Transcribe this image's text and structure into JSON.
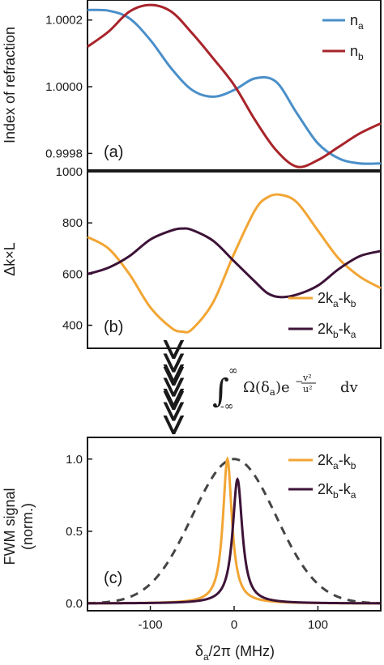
{
  "colors": {
    "n_a": "#4a8fc9",
    "n_b": "#a8242a",
    "k1": "#f2a533",
    "k2": "#3d1338",
    "envelope": "#444444"
  },
  "chart_data": [
    {
      "type": "line",
      "panel_label": "(a)",
      "ylabel": "Index of refraction",
      "xlim": [
        -175,
        175
      ],
      "ylim": [
        0.99975,
        1.00026
      ],
      "yticks": [
        "1.0002",
        "1.0000",
        "0.9998"
      ],
      "ytick_values": [
        1.0002,
        1.0,
        0.9998
      ],
      "legend_position": "top-right",
      "series": [
        {
          "name": "n_a",
          "label_main": "n",
          "label_sub": "a",
          "x": [
            -175,
            -150,
            -125,
            -100,
            -75,
            -50,
            -25,
            0,
            25,
            50,
            75,
            100,
            125,
            150,
            175
          ],
          "y": [
            1.00023,
            1.000228,
            1.000205,
            1.00014,
            1.000055,
            0.99999,
            0.99997,
            0.99999,
            1.000025,
            1.000015,
            0.99992,
            0.99983,
            0.999785,
            0.99977,
            0.99977
          ]
        },
        {
          "name": "n_b",
          "label_main": "n",
          "label_sub": "b",
          "x": [
            -175,
            -150,
            -125,
            -100,
            -75,
            -50,
            -25,
            0,
            25,
            50,
            75,
            100,
            125,
            150,
            175
          ],
          "y": [
            1.00012,
            1.000165,
            1.000225,
            1.000245,
            1.000225,
            1.00016,
            1.000085,
            1.000005,
            0.9999,
            0.99981,
            0.99976,
            0.99978,
            0.99982,
            0.99986,
            0.99989
          ]
        }
      ]
    },
    {
      "type": "line",
      "panel_label": "(b)",
      "ylabel": "Δk×L",
      "xlim": [
        -175,
        175
      ],
      "ylim": [
        310,
        1000
      ],
      "yticks": [
        "1000",
        "800",
        "600",
        "400"
      ],
      "ytick_values": [
        1000,
        800,
        600,
        400
      ],
      "legend_position": "bottom-right",
      "series": [
        {
          "name": "2k_a-k_b",
          "label_parts": [
            "2",
            "k",
            "a",
            "-",
            "k",
            "b"
          ],
          "x": [
            -175,
            -150,
            -125,
            -100,
            -75,
            -62,
            -50,
            -25,
            0,
            25,
            40,
            55,
            75,
            100,
            125,
            150,
            175
          ],
          "y": [
            745,
            700,
            600,
            470,
            390,
            375,
            385,
            490,
            680,
            850,
            900,
            910,
            880,
            770,
            660,
            590,
            545
          ]
        },
        {
          "name": "2k_b-k_a",
          "label_parts": [
            "2",
            "k",
            "b",
            "-",
            "k",
            "a"
          ],
          "x": [
            -175,
            -150,
            -125,
            -100,
            -75,
            -62,
            -50,
            -25,
            0,
            25,
            40,
            55,
            75,
            100,
            125,
            150,
            175
          ],
          "y": [
            600,
            625,
            670,
            735,
            770,
            778,
            772,
            730,
            650,
            570,
            525,
            510,
            520,
            555,
            620,
            670,
            690
          ]
        }
      ]
    },
    {
      "type": "line",
      "panel_label": "(c)",
      "ylabel_line1": "FWM signal",
      "ylabel_line2": "(norm.)",
      "xlabel_main": "δ",
      "xlabel_sub": "a",
      "xlabel_rest": "/2π (MHz)",
      "xlim": [
        -175,
        175
      ],
      "ylim": [
        -0.05,
        1.15
      ],
      "yticks": [
        "1.0",
        "0.5",
        "0.0"
      ],
      "ytick_values": [
        1.0,
        0.5,
        0.0
      ],
      "xticks": [
        "-100",
        "0",
        "100"
      ],
      "xtick_values": [
        -100,
        0,
        100
      ],
      "legend_position": "top-right",
      "series": [
        {
          "name": "2k_a-k_b",
          "label_parts": [
            "2",
            "k",
            "a",
            "-",
            "k",
            "b"
          ],
          "peak_center": -8,
          "peak_height": 1.0,
          "peak_width": 6.5
        },
        {
          "name": "2k_b-k_a",
          "label_parts": [
            "2",
            "k",
            "b",
            "-",
            "k",
            "a"
          ],
          "peak_center": 4,
          "peak_height": 0.86,
          "peak_width": 7
        },
        {
          "name": "doppler-envelope",
          "style": "dashed",
          "peak_center": 0,
          "peak_height": 1.0,
          "gauss_sigma": 50
        }
      ]
    }
  ],
  "arrow_glyph": "⋙",
  "integral_expression": {
    "upper": "∞",
    "lower": "-∞",
    "body": "Ω(δ",
    "body_sub": "a",
    "body_close": ")e",
    "exp_num": "v²",
    "exp_den": "u²",
    "tail": "dv"
  }
}
